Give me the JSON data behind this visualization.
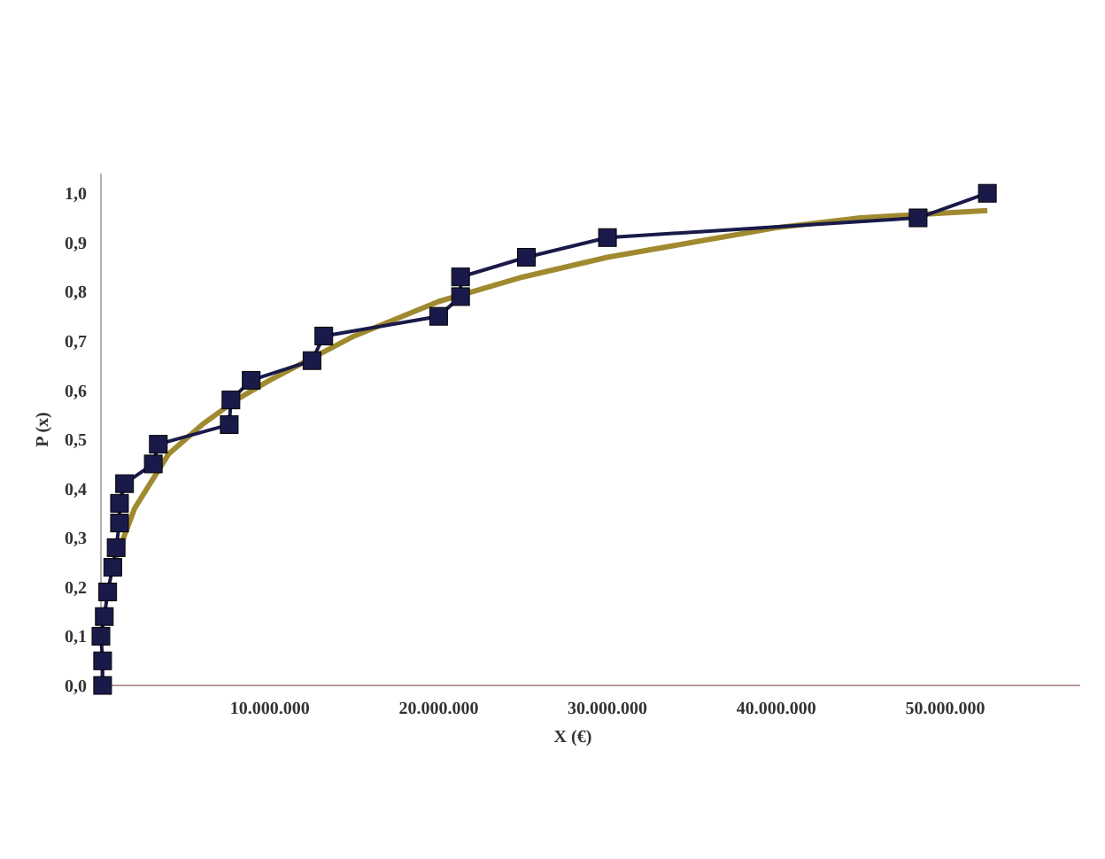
{
  "chart_data": {
    "type": "line",
    "xlabel": "X (€)",
    "ylabel": "P (x)",
    "xlim": [
      0,
      58000000
    ],
    "ylim": [
      0,
      1.04
    ],
    "xticks": [
      {
        "value": 10000000,
        "label": "10.000.000"
      },
      {
        "value": 20000000,
        "label": "20.000.000"
      },
      {
        "value": 30000000,
        "label": "30.000.000"
      },
      {
        "value": 40000000,
        "label": "40.000.000"
      },
      {
        "value": 50000000,
        "label": "50.000.000"
      }
    ],
    "yticks": [
      {
        "value": 0,
        "label": "0,0"
      },
      {
        "value": 0.1,
        "label": "0,1"
      },
      {
        "value": 0.2,
        "label": "0,2"
      },
      {
        "value": 0.3,
        "label": "0,3"
      },
      {
        "value": 0.4,
        "label": "0,4"
      },
      {
        "value": 0.5,
        "label": "0,5"
      },
      {
        "value": 0.6,
        "label": "0,6"
      },
      {
        "value": 0.7,
        "label": "0,7"
      },
      {
        "value": 0.8,
        "label": "0,8"
      },
      {
        "value": 0.9,
        "label": "0,9"
      },
      {
        "value": 1,
        "label": "1,0"
      }
    ],
    "grid": false,
    "series": [
      {
        "color": "#a08a30",
        "marker": "none",
        "x": [
          900000,
          2000000,
          4000000,
          6000000,
          8000000,
          10000000,
          15000000,
          20000000,
          25000000,
          30000000,
          35000000,
          40000000,
          45000000,
          50000000,
          52500000
        ],
        "values": [
          0.26,
          0.36,
          0.47,
          0.53,
          0.58,
          0.62,
          0.71,
          0.78,
          0.83,
          0.87,
          0.9,
          0.93,
          0.95,
          0.96,
          0.965
        ]
      },
      {
        "color": "#1a1a4a",
        "marker": "square",
        "x": [
          100000,
          100000,
          0,
          200000,
          400000,
          700000,
          900000,
          1100000,
          1100000,
          1400000,
          3100000,
          3400000,
          7600000,
          7700000,
          8900000,
          12500000,
          13200000,
          20000000,
          21300000,
          21300000,
          25200000,
          30000000,
          48400000,
          52500000
        ],
        "values": [
          0.0,
          0.05,
          0.1,
          0.14,
          0.19,
          0.24,
          0.28,
          0.33,
          0.37,
          0.41,
          0.45,
          0.49,
          0.53,
          0.58,
          0.62,
          0.66,
          0.71,
          0.75,
          0.79,
          0.83,
          0.87,
          0.91,
          0.95,
          1.0
        ]
      }
    ]
  }
}
